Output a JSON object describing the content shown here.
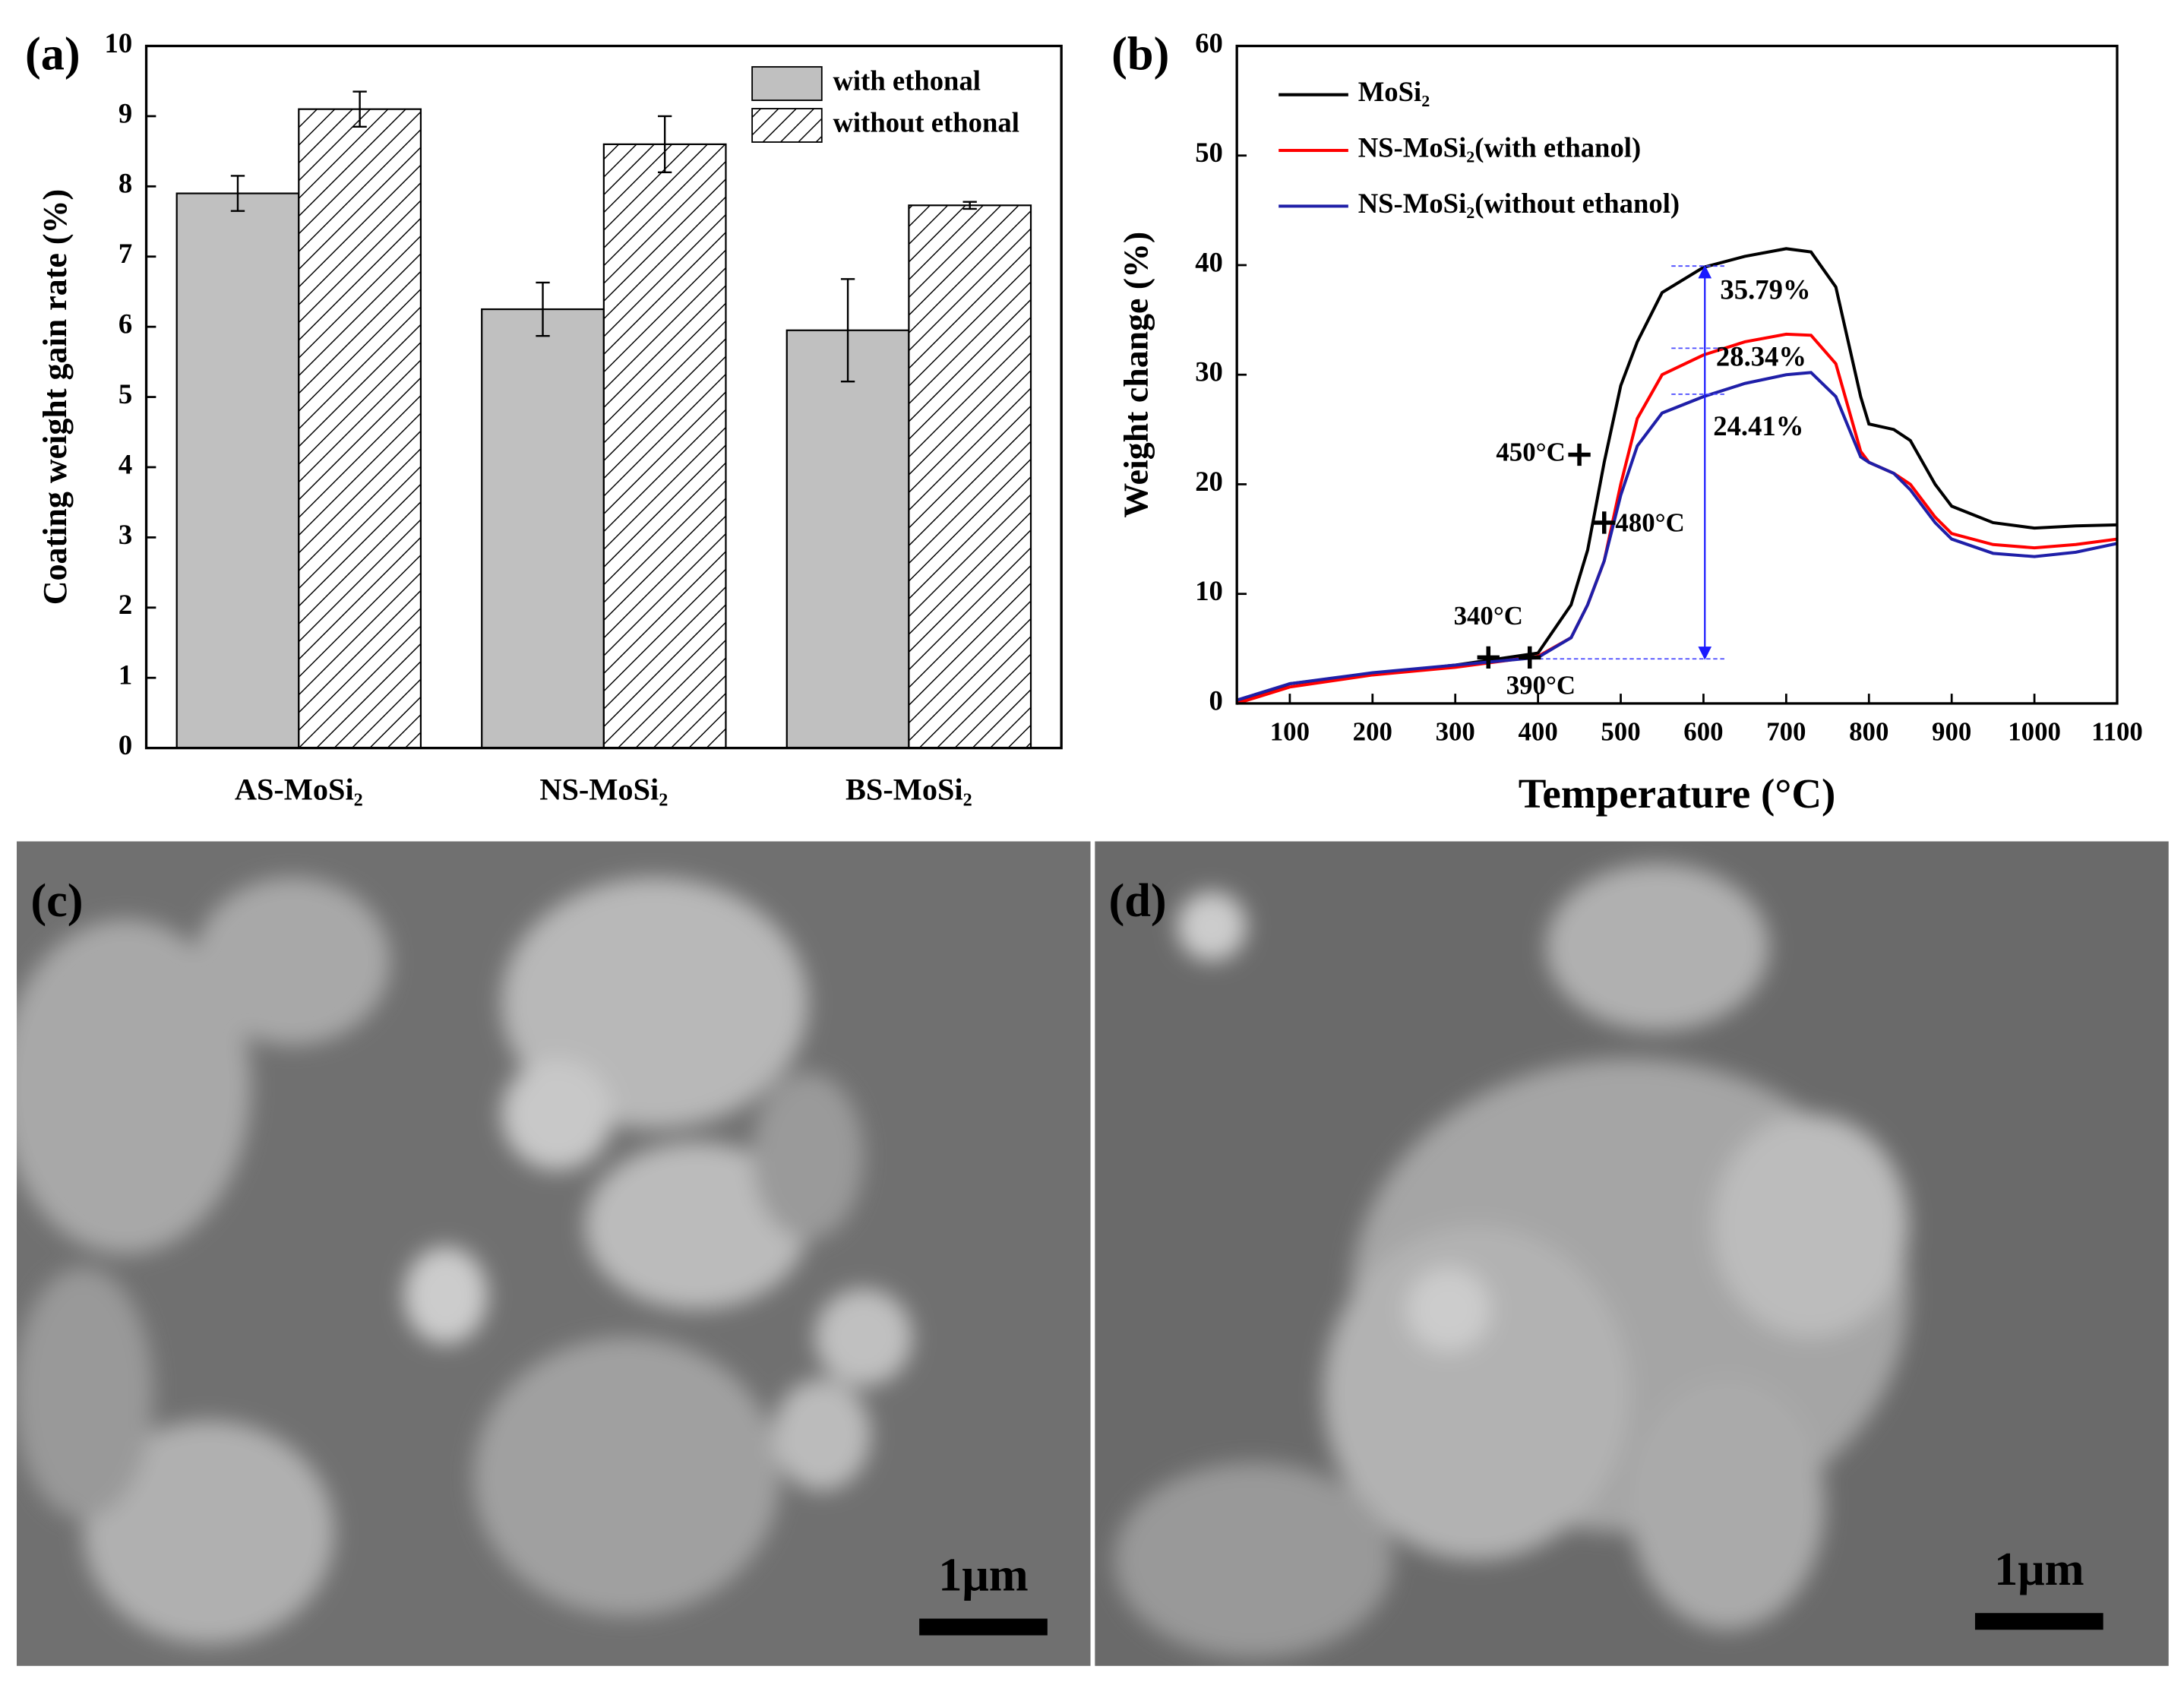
{
  "chart_data": [
    {
      "type": "bar",
      "label": "(a)",
      "y_label": "Coating weight gain rate (%)",
      "categories": [
        "AS-MoSi₂",
        "NS-MoSi₂",
        "BS-MoSi₂"
      ],
      "series": [
        {
          "name": "with ethonal",
          "color": "#c0c0c0",
          "values": [
            7.9,
            6.25,
            5.95
          ],
          "errors": [
            0.25,
            0.38,
            0.73
          ]
        },
        {
          "name": "without ethonal",
          "color": "#ffffff",
          "hatch": true,
          "values": [
            9.1,
            8.6,
            7.73
          ],
          "errors": [
            0.25,
            0.4,
            0.05
          ]
        }
      ],
      "ylim": [
        0,
        10
      ],
      "yticks": [
        0,
        1,
        2,
        3,
        4,
        5,
        6,
        7,
        8,
        9,
        10
      ],
      "legend": "upper right"
    },
    {
      "type": "line",
      "label": "(b)",
      "x_label": "Temperature (°C)",
      "y_label": "Weight change (%)",
      "x": [
        36,
        100,
        200,
        300,
        400,
        440,
        460,
        480,
        500,
        520,
        550,
        600,
        650,
        700,
        730,
        760,
        790,
        800,
        830,
        850,
        880,
        900,
        950,
        1000,
        1050,
        1100
      ],
      "series": [
        {
          "name": "MoSi₂",
          "color": "#000000",
          "values": [
            0,
            1.8,
            2.7,
            3.5,
            4.6,
            9,
            14,
            22,
            29,
            33,
            37.5,
            39.8,
            40.8,
            41.5,
            41.2,
            38,
            28,
            25.5,
            25,
            24,
            20,
            18,
            16.5,
            16,
            16.2,
            16.3
          ]
        },
        {
          "name": "NS-MoSi₂(with ethanol)",
          "color": "#ff0000",
          "values": [
            0,
            1.5,
            2.6,
            3.3,
            4.3,
            6,
            9,
            13,
            20,
            26,
            30,
            31.8,
            33,
            33.7,
            33.6,
            31,
            23,
            22,
            21,
            20,
            17,
            15.5,
            14.5,
            14.2,
            14.5,
            15
          ]
        },
        {
          "name": "NS-MoSi₂(without ethanol)",
          "color": "#1f1fa8",
          "values": [
            0.3,
            1.8,
            2.8,
            3.5,
            4.2,
            6,
            9,
            13,
            19,
            23.5,
            26.5,
            28,
            29.2,
            30,
            30.2,
            28,
            22.5,
            22,
            21,
            19.5,
            16.5,
            15,
            13.7,
            13.4,
            13.8,
            14.6
          ]
        }
      ],
      "xlim": [
        36,
        1100
      ],
      "xticks": [
        100,
        200,
        300,
        400,
        500,
        600,
        700,
        800,
        900,
        1000,
        1100
      ],
      "ylim": [
        0,
        60
      ],
      "yticks": [
        0,
        10,
        20,
        30,
        40,
        50,
        60
      ],
      "legend": "upper left",
      "markers": {
        "x": [
          450,
          480,
          340,
          390
        ],
        "y": [
          22.7,
          16.5,
          4.2,
          4.2
        ],
        "labels": [
          "450°C",
          "480°C",
          "340°C",
          "390°C"
        ]
      },
      "annotations": [
        "35.79%",
        "28.34%",
        "24.41%"
      ]
    }
  ],
  "images": [
    {
      "label": "(c)",
      "scale_bar": "1μm"
    },
    {
      "label": "(d)",
      "scale_bar": "1μm"
    }
  ]
}
